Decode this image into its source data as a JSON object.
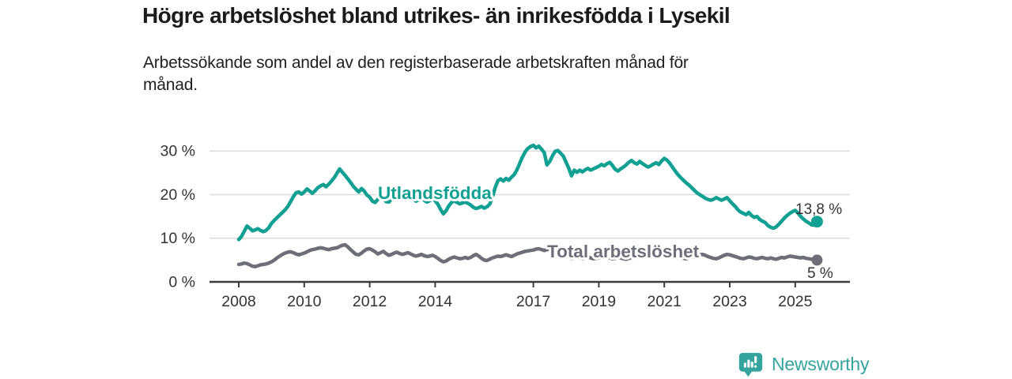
{
  "header": {
    "title": "Högre arbetslöshet bland utrikes- än inrikesfödda i Lysekil",
    "subtitle_line1": "Arbetssökande som andel av den registerbaserade arbetskraften månad för",
    "subtitle_line2": "månad."
  },
  "chart_data": {
    "type": "line",
    "unit": "%",
    "frequency": "monthly",
    "x_start": "2008-01",
    "x_end": "2025-09",
    "ylim": [
      0,
      33
    ],
    "grid": "horizontal",
    "legend_position": "inline-labels",
    "y_ticks": [
      {
        "value": 0,
        "label": "0 %"
      },
      {
        "value": 10,
        "label": "10 %"
      },
      {
        "value": 20,
        "label": "20 %"
      },
      {
        "value": 30,
        "label": "30 %"
      }
    ],
    "x_ticks": [
      {
        "year": 2008,
        "label": "2008"
      },
      {
        "year": 2010,
        "label": "2010"
      },
      {
        "year": 2012,
        "label": "2012"
      },
      {
        "year": 2014,
        "label": "2014"
      },
      {
        "year": 2017,
        "label": "2017"
      },
      {
        "year": 2019,
        "label": "2019"
      },
      {
        "year": 2021,
        "label": "2021"
      },
      {
        "year": 2023,
        "label": "2023"
      },
      {
        "year": 2025,
        "label": "2025"
      }
    ],
    "series": [
      {
        "name": "Utlandsfödda",
        "color": "#11a091",
        "end_label": "13,8 %",
        "last_value": 13.8,
        "values": [
          9.7,
          10.4,
          11.6,
          12.8,
          12.3,
          11.7,
          11.9,
          12.2,
          11.8,
          11.5,
          11.8,
          12.4,
          13.4,
          14.1,
          14.7,
          15.3,
          15.9,
          16.5,
          17.3,
          18.4,
          19.5,
          20.4,
          20.6,
          20.1,
          20.6,
          21.3,
          20.8,
          20.3,
          20.9,
          21.6,
          22.0,
          22.3,
          21.8,
          22.4,
          23.1,
          23.9,
          24.9,
          25.9,
          25.1,
          24.4,
          23.6,
          22.8,
          21.9,
          21.2,
          20.6,
          21.4,
          20.8,
          19.9,
          19.4,
          18.5,
          18.2,
          18.9,
          19.7,
          19.1,
          18.4,
          18.3,
          19.0,
          19.8,
          20.2,
          19.6,
          19.3,
          19.7,
          20.0,
          19.4,
          18.9,
          18.5,
          18.8,
          19.2,
          18.7,
          18.3,
          18.6,
          19.0,
          18.6,
          17.8,
          16.6,
          15.6,
          16.3,
          17.4,
          18.2,
          18.6,
          18.2,
          17.9,
          18.1,
          18.3,
          18.0,
          17.6,
          17.1,
          16.8,
          17.0,
          17.3,
          16.9,
          17.2,
          17.8,
          19.4,
          21.6,
          23.2,
          23.6,
          23.1,
          23.7,
          23.3,
          24.0,
          24.6,
          25.7,
          27.2,
          28.6,
          29.8,
          30.6,
          31.0,
          31.3,
          30.7,
          31.1,
          30.4,
          29.6,
          26.8,
          27.6,
          28.9,
          29.9,
          30.1,
          29.5,
          28.8,
          27.4,
          26.0,
          24.3,
          25.6,
          25.1,
          25.6,
          25.2,
          25.7,
          26.0,
          25.6,
          25.9,
          26.2,
          26.5,
          26.9,
          26.6,
          27.1,
          27.4,
          26.7,
          25.8,
          25.4,
          25.9,
          26.3,
          26.8,
          27.4,
          27.8,
          27.3,
          27.0,
          27.6,
          27.1,
          26.7,
          26.3,
          26.6,
          27.0,
          27.3,
          26.9,
          27.7,
          28.3,
          27.9,
          27.2,
          26.3,
          25.4,
          24.6,
          23.9,
          23.3,
          22.7,
          22.2,
          21.6,
          21.0,
          20.4,
          20.0,
          19.6,
          19.2,
          18.9,
          18.7,
          18.9,
          19.3,
          19.0,
          18.7,
          19.0,
          19.3,
          18.6,
          17.9,
          17.3,
          16.5,
          16.0,
          15.7,
          15.4,
          15.9,
          15.2,
          14.8,
          15.0,
          14.3,
          13.9,
          13.6,
          12.9,
          12.5,
          12.3,
          12.6,
          13.2,
          13.9,
          14.6,
          15.2,
          15.7,
          16.1,
          16.4,
          15.8,
          15.0,
          14.4,
          13.9,
          13.5,
          13.1,
          13.0,
          13.8
        ]
      },
      {
        "name": "Total arbetslöshet",
        "color": "#6e6e78",
        "end_label": "5 %",
        "last_value": 5.0,
        "values": [
          4.0,
          4.1,
          4.3,
          4.2,
          3.9,
          3.6,
          3.5,
          3.7,
          3.9,
          4.0,
          4.1,
          4.3,
          4.6,
          5.0,
          5.5,
          5.9,
          6.3,
          6.6,
          6.8,
          6.9,
          6.7,
          6.4,
          6.2,
          6.4,
          6.6,
          6.9,
          7.2,
          7.4,
          7.5,
          7.7,
          7.8,
          7.7,
          7.5,
          7.4,
          7.6,
          7.7,
          7.8,
          8.1,
          8.4,
          8.5,
          8.0,
          7.4,
          6.8,
          6.3,
          6.2,
          6.6,
          7.1,
          7.5,
          7.6,
          7.3,
          6.9,
          6.4,
          6.7,
          7.0,
          6.5,
          6.1,
          6.3,
          6.6,
          6.8,
          6.5,
          6.3,
          6.5,
          6.7,
          6.4,
          6.1,
          5.9,
          6.1,
          6.3,
          6.0,
          5.8,
          5.9,
          6.1,
          5.8,
          5.4,
          4.9,
          4.6,
          4.8,
          5.2,
          5.5,
          5.7,
          5.5,
          5.3,
          5.4,
          5.6,
          5.4,
          5.6,
          6.0,
          6.3,
          5.9,
          5.4,
          5.0,
          4.9,
          5.2,
          5.5,
          5.7,
          5.9,
          5.8,
          6.0,
          6.2,
          6.0,
          5.8,
          6.1,
          6.4,
          6.6,
          6.8,
          7.0,
          7.1,
          7.2,
          7.3,
          7.5,
          7.6,
          7.4,
          7.2,
          7.4,
          7.5,
          7.3,
          7.1,
          6.9,
          6.6,
          6.3,
          6.0,
          5.7,
          5.4,
          5.6,
          5.8,
          5.6,
          5.4,
          5.5,
          5.7,
          5.5,
          5.3,
          5.4,
          5.5,
          5.6,
          5.8,
          5.7,
          5.5,
          5.3,
          5.4,
          5.6,
          5.5,
          5.3,
          5.2,
          5.4,
          5.6,
          5.5,
          5.7,
          6.1,
          6.4,
          6.6,
          6.5,
          6.3,
          6.1,
          6.0,
          5.9,
          6.0,
          6.1,
          6.3,
          6.2,
          6.0,
          5.8,
          5.6,
          5.5,
          5.4,
          5.3,
          5.5,
          5.7,
          5.9,
          6.0,
          6.2,
          6.3,
          6.1,
          5.8,
          5.6,
          5.4,
          5.3,
          5.5,
          5.8,
          6.1,
          6.3,
          6.2,
          6.0,
          5.8,
          5.6,
          5.4,
          5.3,
          5.5,
          5.7,
          5.6,
          5.4,
          5.3,
          5.5,
          5.6,
          5.4,
          5.3,
          5.5,
          5.3,
          5.2,
          5.4,
          5.6,
          5.5,
          5.7,
          5.9,
          5.8,
          5.7,
          5.6,
          5.5,
          5.6,
          5.4,
          5.3,
          5.2,
          5.1,
          5.0
        ]
      }
    ],
    "colors": {
      "utlandsfodda": "#11a091",
      "total": "#6e6e78",
      "axis": "#3c3c3c",
      "gridline": "#dcdcdc",
      "tick_text": "#333333"
    }
  },
  "branding": {
    "logo_text": "Newsworthy",
    "logo_color": "#36a49e",
    "logo_icon": "bar-chart-speech-bubble-icon"
  }
}
